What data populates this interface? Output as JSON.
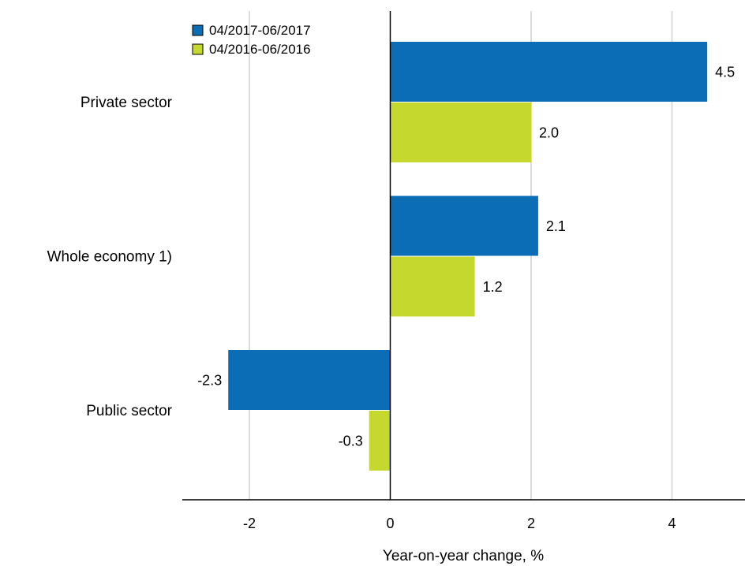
{
  "chart_data": {
    "type": "bar",
    "orientation": "horizontal",
    "categories": [
      "Private sector",
      "Whole economy 1)",
      "Public sector"
    ],
    "series": [
      {
        "name": "04/2017-06/2017",
        "color": "#0a6db5",
        "values": [
          4.5,
          2.1,
          -2.3
        ],
        "labels": [
          "4.5",
          "2.1",
          "-2.3"
        ]
      },
      {
        "name": "04/2016-06/2016",
        "color": "#c5d82e",
        "values": [
          2.0,
          1.2,
          -0.3
        ],
        "labels": [
          "2.0",
          "1.2",
          "-0.3"
        ]
      }
    ],
    "xlabel": "Year-on-year change, %",
    "ylabel": "",
    "xlim": [
      -3,
      5
    ],
    "xticks": [
      -2,
      0,
      2,
      4
    ],
    "xtick_labels": [
      "-2",
      "0",
      "2",
      "4"
    ],
    "grid": "vertical",
    "legend_position": "top-left"
  }
}
